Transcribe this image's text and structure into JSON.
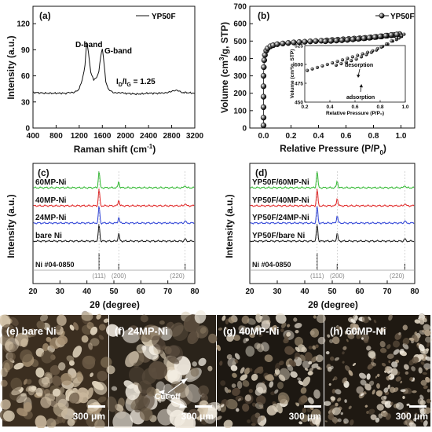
{
  "panels": {
    "a": {
      "label": "(a)",
      "ylabel": "Intensity (a.u.)",
      "xlabel": "Raman shift (cm",
      "xlabel_sup": "-1",
      "xlabel_end": ")",
      "legend": "YP50F",
      "dband": "D-band",
      "gband": "G-band",
      "ratio_prefix": "I",
      "ratio_sub1": "D",
      "ratio_slash": "/I",
      "ratio_sub2": "G",
      "ratio_value": " = 1.25"
    },
    "b": {
      "label": "(b)",
      "ylabel": "Volume (cm",
      "ylabel_sup": "3",
      "ylabel_end": "/g, STP)",
      "xlabel": "Relative Pressure (P/P",
      "xlabel_sub": "0",
      "xlabel_end": ")",
      "legend": "YP50F",
      "inset_ylabel": "Volume (cm³/g, STP)",
      "inset_xlabel": "Relative Pressure (P/P₀)",
      "desorption": "desorption",
      "adsorption": "adsorption"
    },
    "c": {
      "label": "(c)",
      "ylabel": "Intensity (a.u.)",
      "xlabel": "2θ (degree)",
      "traces": [
        "60MP-Ni",
        "40MP-Ni",
        "24MP-Ni",
        "bare Ni"
      ],
      "ref": "Ni #04-0850",
      "peaks": [
        "(111)",
        "(200)",
        "(220)"
      ]
    },
    "d": {
      "label": "(d)",
      "ylabel": "Intensity (a.u.)",
      "xlabel": "2θ (degree)",
      "traces": [
        "YP50F/60MP-Ni",
        "YP50F/40MP-Ni",
        "YP50F/24MP-Ni",
        "YP50F/bare Ni"
      ],
      "ref": "Ni #04-0850",
      "peaks": [
        "(111)",
        "(200)",
        "(220)"
      ]
    }
  },
  "micrographs": [
    {
      "label": "(e) bare Ni",
      "scale": "300 μm"
    },
    {
      "label": "(f) 24MP-Ni",
      "scale": "300 μm",
      "annotation": "Cut-off"
    },
    {
      "label": "(g) 40MP-Ni",
      "scale": "300 μm"
    },
    {
      "label": "(h) 60MP-Ni",
      "scale": "300 μm"
    }
  ],
  "colors": {
    "trace_green": "#2eb82e",
    "trace_red": "#e02020",
    "trace_blue": "#2a3fd6",
    "trace_black": "#111111"
  },
  "chart_data": [
    {
      "type": "line",
      "title": "(a)",
      "xlabel": "Raman shift (cm-1)",
      "ylabel": "Intensity (a.u.)",
      "xlim": [
        400,
        3200
      ],
      "ylim": [
        0,
        140
      ],
      "xticks": [
        400,
        800,
        1200,
        1600,
        2000,
        2400,
        2800,
        3200
      ],
      "yticks": [
        0,
        30,
        60,
        90,
        120
      ],
      "series": [
        {
          "name": "YP50F",
          "x": [
            400,
            600,
            800,
            1000,
            1100,
            1200,
            1250,
            1300,
            1330,
            1360,
            1400,
            1450,
            1500,
            1540,
            1570,
            1600,
            1630,
            1660,
            1700,
            1800,
            1900,
            2000,
            2200,
            2400,
            2600,
            2700,
            2800,
            2900,
            3000,
            3200
          ],
          "y": [
            41,
            40,
            40,
            40,
            41,
            45,
            55,
            72,
            99,
            88,
            64,
            56,
            58,
            66,
            82,
            91,
            74,
            54,
            45,
            41,
            40,
            40,
            39,
            40,
            40,
            41,
            42,
            43,
            41,
            40
          ]
        }
      ],
      "annotations": [
        "D-band",
        "G-band",
        "ID/IG = 1.25"
      ]
    },
    {
      "type": "scatter",
      "title": "(b)",
      "xlabel": "Relative Pressure (P/P0)",
      "ylabel": "Volume (cm3/g, STP)",
      "xlim": [
        -0.1,
        1.1
      ],
      "ylim": [
        0,
        700
      ],
      "xticks": [
        0.0,
        0.2,
        0.4,
        0.6,
        0.8,
        1.0
      ],
      "yticks": [
        0,
        100,
        200,
        300,
        400,
        500,
        600,
        700
      ],
      "series": [
        {
          "name": "YP50F",
          "x": [
            0,
            0,
            0,
            0,
            0,
            0,
            0.002,
            0.005,
            0.01,
            0.02,
            0.03,
            0.05,
            0.07,
            0.1,
            0.14,
            0.18,
            0.22,
            0.26,
            0.3,
            0.34,
            0.38,
            0.42,
            0.46,
            0.5,
            0.54,
            0.58,
            0.62,
            0.66,
            0.7,
            0.74,
            0.78,
            0.82,
            0.86,
            0.9,
            0.93,
            0.95,
            0.97,
            0.99,
            0.97,
            0.93,
            0.89,
            0.85,
            0.81,
            0.77,
            0.73,
            0.69,
            0.65,
            0.61,
            0.57,
            0.53,
            0.49,
            0.45
          ],
          "y": [
            15,
            60,
            120,
            180,
            240,
            300,
            350,
            390,
            420,
            445,
            458,
            470,
            476,
            482,
            486,
            489,
            492,
            494,
            496,
            498,
            500,
            502,
            504,
            506,
            508,
            510,
            512,
            514,
            516,
            518,
            521,
            524,
            527,
            531,
            533,
            535,
            537,
            540,
            538,
            535,
            531,
            527,
            523,
            519,
            516,
            513,
            510,
            507,
            505,
            503,
            501,
            499
          ]
        }
      ],
      "inset": {
        "xlabel": "Relative Pressure (P/P0)",
        "ylabel": "Volume (cm3/g, STP)",
        "xlim": [
          0.2,
          1.0
        ],
        "ylim": [
          450,
          525
        ],
        "xticks": [
          0.2,
          0.4,
          0.6,
          0.8,
          1.0
        ],
        "yticks": [
          450,
          475,
          500,
          525
        ],
        "annotations": [
          "desorption",
          "adsorption"
        ]
      }
    },
    {
      "type": "line",
      "title": "(c)",
      "xlabel": "2θ (degree)",
      "ylabel": "Intensity (a.u.)",
      "xlim": [
        20,
        80
      ],
      "xticks": [
        20,
        30,
        40,
        50,
        60,
        70,
        80
      ],
      "peak_positions": [
        44.5,
        51.8,
        76.4
      ],
      "series": [
        {
          "name": "60MP-Ni",
          "peak_heights": [
            1.0,
            0.35,
            0.15
          ]
        },
        {
          "name": "40MP-Ni",
          "peak_heights": [
            1.0,
            0.35,
            0.15
          ]
        },
        {
          "name": "24MP-Ni",
          "peak_heights": [
            1.0,
            0.35,
            0.15
          ]
        },
        {
          "name": "bare Ni",
          "peak_heights": [
            1.0,
            0.45,
            0.15
          ]
        }
      ],
      "reference": {
        "name": "Ni #04-0850",
        "peaks": [
          {
            "x": 44.5,
            "label": "(111)"
          },
          {
            "x": 51.8,
            "label": "(200)"
          },
          {
            "x": 76.4,
            "label": "(220)"
          }
        ]
      }
    },
    {
      "type": "line",
      "title": "(d)",
      "xlabel": "2θ (degree)",
      "ylabel": "Intensity (a.u.)",
      "xlim": [
        20,
        80
      ],
      "xticks": [
        20,
        30,
        40,
        50,
        60,
        70,
        80
      ],
      "peak_positions": [
        44.5,
        51.8,
        76.4
      ],
      "series": [
        {
          "name": "YP50F/60MP-Ni",
          "peak_heights": [
            1.0,
            0.4,
            0.15
          ]
        },
        {
          "name": "YP50F/40MP-Ni",
          "peak_heights": [
            1.0,
            0.45,
            0.15
          ]
        },
        {
          "name": "YP50F/24MP-Ni",
          "peak_heights": [
            1.0,
            0.45,
            0.15
          ]
        },
        {
          "name": "YP50F/bare Ni",
          "peak_heights": [
            1.0,
            0.45,
            0.15
          ]
        }
      ],
      "reference": {
        "name": "Ni #04-0850",
        "peaks": [
          {
            "x": 44.5,
            "label": "(111)"
          },
          {
            "x": 51.8,
            "label": "(200)"
          },
          {
            "x": 76.4,
            "label": "(220)"
          }
        ]
      }
    }
  ]
}
